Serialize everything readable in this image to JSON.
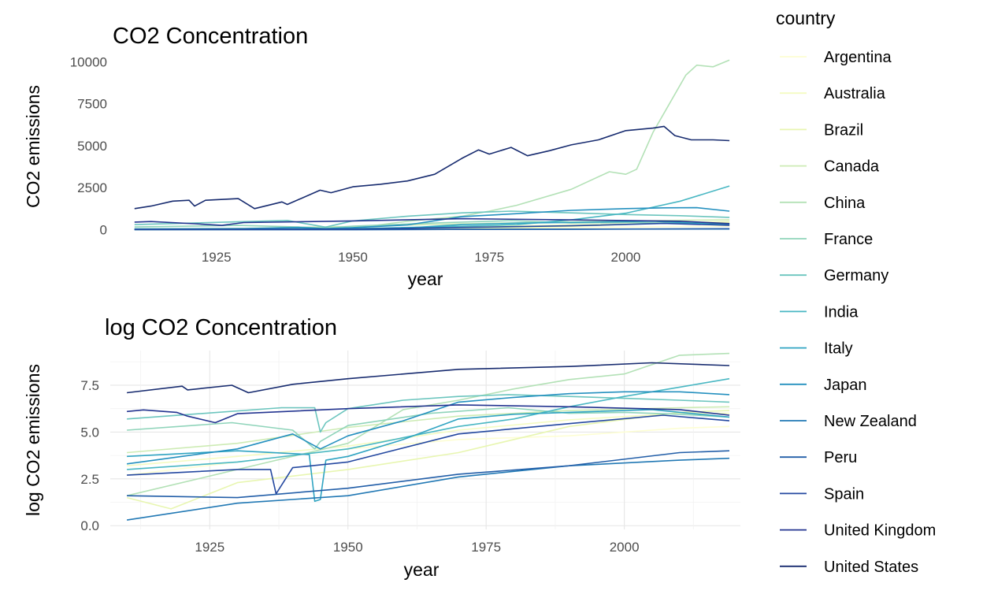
{
  "legend": {
    "title": "country",
    "items": [
      {
        "name": "Argentina",
        "color": "#fdfed3"
      },
      {
        "name": "Australia",
        "color": "#f4fbc2"
      },
      {
        "name": "Brazil",
        "color": "#e8f6b1"
      },
      {
        "name": "Canada",
        "color": "#cdebb4"
      },
      {
        "name": "China",
        "color": "#b3e1b6"
      },
      {
        "name": "France",
        "color": "#8fd4ba"
      },
      {
        "name": "Germany",
        "color": "#6bc5be"
      },
      {
        "name": "India",
        "color": "#49b7c3"
      },
      {
        "name": "Italy",
        "color": "#30a4c2"
      },
      {
        "name": "Japan",
        "color": "#2490bf"
      },
      {
        "name": "New Zealand",
        "color": "#2178b4"
      },
      {
        "name": "Peru",
        "color": "#225ea8"
      },
      {
        "name": "Spain",
        "color": "#2448a0"
      },
      {
        "name": "United Kingdom",
        "color": "#233490"
      },
      {
        "name": "United States",
        "color": "#172b6f"
      }
    ]
  },
  "chart_data": [
    {
      "type": "line",
      "title": "CO2 Concentration",
      "xlabel": "year",
      "ylabel": "CO2 emissions",
      "xlim": [
        1907,
        2021
      ],
      "ylim": [
        -400,
        10300
      ],
      "xticks": [
        1925,
        1950,
        1975,
        2000
      ],
      "yticks": [
        0,
        2500,
        5000,
        7500,
        10000
      ],
      "ytick_labels": [
        "0",
        "2500",
        "5000",
        "7500",
        "10000"
      ],
      "grid": false,
      "legend_position": "right",
      "series": [
        {
          "name": "Argentina",
          "x": [
            1910,
            1930,
            1950,
            1970,
            1990,
            2010,
            2019
          ],
          "y": [
            15,
            30,
            60,
            100,
            120,
            180,
            200
          ]
        },
        {
          "name": "Australia",
          "x": [
            1910,
            1930,
            1950,
            1970,
            1990,
            2010,
            2019
          ],
          "y": [
            25,
            40,
            70,
            160,
            290,
            400,
            410
          ]
        },
        {
          "name": "Brazil",
          "x": [
            1910,
            1930,
            1950,
            1970,
            1990,
            2010,
            2019
          ],
          "y": [
            5,
            10,
            20,
            50,
            200,
            420,
            470
          ]
        },
        {
          "name": "Canada",
          "x": [
            1910,
            1930,
            1950,
            1970,
            1990,
            2010,
            2019
          ],
          "y": [
            50,
            80,
            190,
            350,
            460,
            560,
            580
          ]
        },
        {
          "name": "China",
          "x": [
            1910,
            1930,
            1950,
            1960,
            1970,
            1975,
            1980,
            1990,
            1997,
            2000,
            2002,
            2005,
            2008,
            2011,
            2013,
            2016,
            2019
          ],
          "y": [
            5,
            20,
            80,
            500,
            800,
            1100,
            1450,
            2400,
            3450,
            3300,
            3600,
            5800,
            7500,
            9200,
            9800,
            9700,
            10100
          ]
        },
        {
          "name": "France",
          "x": [
            1910,
            1929,
            1940,
            1945,
            1950,
            1965,
            1979,
            1990,
            2000,
            2010,
            2019
          ],
          "y": [
            160,
            250,
            160,
            90,
            210,
            400,
            540,
            400,
            420,
            390,
            330
          ]
        },
        {
          "name": "Germany",
          "x": [
            1910,
            1938,
            1945,
            1950,
            1960,
            1970,
            1979,
            1990,
            2000,
            2010,
            2019
          ],
          "y": [
            300,
            550,
            150,
            520,
            800,
            1000,
            1100,
            1000,
            900,
            830,
            730
          ]
        },
        {
          "name": "India",
          "x": [
            1910,
            1930,
            1950,
            1970,
            1980,
            1990,
            2000,
            2010,
            2019
          ],
          "y": [
            20,
            30,
            60,
            200,
            300,
            580,
            980,
            1700,
            2600
          ]
        },
        {
          "name": "Italy",
          "x": [
            1910,
            1930,
            1944,
            1950,
            1960,
            1970,
            1980,
            1990,
            2005,
            2015,
            2019
          ],
          "y": [
            40,
            55,
            12,
            40,
            100,
            300,
            390,
            430,
            500,
            350,
            330
          ]
        },
        {
          "name": "Japan",
          "x": [
            1910,
            1930,
            1940,
            1945,
            1950,
            1960,
            1970,
            1980,
            1990,
            2000,
            2007,
            2013,
            2019
          ],
          "y": [
            25,
            60,
            130,
            60,
            120,
            280,
            780,
            950,
            1150,
            1250,
            1300,
            1310,
            1100
          ]
        },
        {
          "name": "New Zealand",
          "x": [
            1910,
            1950,
            1990,
            2019
          ],
          "y": [
            2,
            5,
            25,
            35
          ]
        },
        {
          "name": "Peru",
          "x": [
            1910,
            1950,
            1990,
            2019
          ],
          "y": [
            1,
            5,
            25,
            55
          ]
        },
        {
          "name": "Spain",
          "x": [
            1910,
            1930,
            1950,
            1970,
            1990,
            2007,
            2019
          ],
          "y": [
            15,
            20,
            30,
            130,
            230,
            370,
            260
          ]
        },
        {
          "name": "United Kingdom",
          "x": [
            1910,
            1913,
            1921,
            1926,
            1930,
            1950,
            1970,
            1990,
            2010,
            2019
          ],
          "y": [
            450,
            480,
            350,
            250,
            420,
            520,
            650,
            580,
            500,
            360
          ]
        },
        {
          "name": "United States",
          "x": [
            1910,
            1913,
            1917,
            1920,
            1921,
            1923,
            1929,
            1932,
            1937,
            1938,
            1944,
            1946,
            1950,
            1955,
            1960,
            1965,
            1970,
            1973,
            1975,
            1979,
            1982,
            1986,
            1990,
            1995,
            2000,
            2005,
            2007,
            2009,
            2012,
            2016,
            2019
          ],
          "y": [
            1250,
            1400,
            1700,
            1750,
            1400,
            1750,
            1850,
            1250,
            1650,
            1500,
            2350,
            2200,
            2550,
            2700,
            2900,
            3300,
            4250,
            4750,
            4500,
            4900,
            4400,
            4700,
            5050,
            5350,
            5900,
            6050,
            6150,
            5600,
            5350,
            5350,
            5300
          ]
        }
      ]
    },
    {
      "type": "line",
      "title": "log CO2 Concentration",
      "xlabel": "year",
      "ylabel": "log CO2 emissions",
      "xlim": [
        1907,
        2021
      ],
      "ylim": [
        -0.2,
        9.35
      ],
      "xticks": [
        1925,
        1950,
        1975,
        2000
      ],
      "yticks": [
        0,
        2.5,
        5,
        7.5
      ],
      "ytick_labels": [
        "0.0",
        "2.5",
        "5.0",
        "7.5"
      ],
      "grid": true,
      "legend_position": "right",
      "series": [
        {
          "name": "Argentina",
          "x": [
            1910,
            1930,
            1950,
            1970,
            1990,
            2010,
            2019
          ],
          "y": [
            2.7,
            3.4,
            4.1,
            4.6,
            4.8,
            5.2,
            5.3
          ]
        },
        {
          "name": "Australia",
          "x": [
            1910,
            1930,
            1950,
            1970,
            1990,
            2010,
            2019
          ],
          "y": [
            3.2,
            3.7,
            4.25,
            5.1,
            5.65,
            6.0,
            6.0
          ]
        },
        {
          "name": "Brazil",
          "x": [
            1910,
            1918,
            1930,
            1950,
            1970,
            1990,
            2010,
            2019
          ],
          "y": [
            1.5,
            0.9,
            2.3,
            3.0,
            3.9,
            5.3,
            6.05,
            6.15
          ]
        },
        {
          "name": "Canada",
          "x": [
            1910,
            1930,
            1950,
            1970,
            1990,
            2010,
            2019
          ],
          "y": [
            3.9,
            4.4,
            5.25,
            5.85,
            6.15,
            6.3,
            6.35
          ]
        },
        {
          "name": "China",
          "x": [
            1910,
            1930,
            1950,
            1960,
            1970,
            1980,
            1990,
            2000,
            2010,
            2019
          ],
          "y": [
            1.6,
            3.0,
            4.4,
            6.2,
            6.7,
            7.3,
            7.8,
            8.1,
            9.1,
            9.2
          ]
        },
        {
          "name": "France",
          "x": [
            1910,
            1929,
            1940,
            1944,
            1945,
            1950,
            1965,
            1979,
            1990,
            2000,
            2010,
            2019
          ],
          "y": [
            5.1,
            5.5,
            5.1,
            4.1,
            4.5,
            5.35,
            6.0,
            6.3,
            6.0,
            6.05,
            5.95,
            5.8
          ]
        },
        {
          "name": "Germany",
          "x": [
            1910,
            1938,
            1944,
            1945,
            1946,
            1950,
            1960,
            1970,
            1979,
            1990,
            2000,
            2010,
            2019
          ],
          "y": [
            5.7,
            6.3,
            6.3,
            5.0,
            5.5,
            6.25,
            6.7,
            6.9,
            7.0,
            6.9,
            6.8,
            6.7,
            6.6
          ]
        },
        {
          "name": "India",
          "x": [
            1910,
            1930,
            1950,
            1970,
            1980,
            1990,
            2000,
            2010,
            2019
          ],
          "y": [
            3.0,
            3.4,
            4.1,
            5.3,
            5.7,
            6.35,
            6.9,
            7.4,
            7.85
          ]
        },
        {
          "name": "Italy",
          "x": [
            1910,
            1930,
            1943,
            1944,
            1945,
            1946,
            1950,
            1960,
            1970,
            1980,
            1990,
            2005,
            2019
          ],
          "y": [
            3.7,
            4.0,
            3.8,
            1.3,
            1.4,
            3.5,
            3.7,
            4.6,
            5.7,
            5.95,
            6.05,
            6.2,
            5.8
          ]
        },
        {
          "name": "Japan",
          "x": [
            1910,
            1930,
            1940,
            1945,
            1950,
            1960,
            1970,
            1980,
            1990,
            2000,
            2010,
            2019
          ],
          "y": [
            3.3,
            4.1,
            4.9,
            4.1,
            4.8,
            5.6,
            6.6,
            6.85,
            7.05,
            7.15,
            7.15,
            7.0
          ]
        },
        {
          "name": "New Zealand",
          "x": [
            1910,
            1930,
            1950,
            1970,
            1990,
            2010,
            2019
          ],
          "y": [
            0.3,
            1.2,
            1.6,
            2.6,
            3.2,
            3.5,
            3.6
          ]
        },
        {
          "name": "Peru",
          "x": [
            1910,
            1930,
            1950,
            1970,
            1990,
            2010,
            2019
          ],
          "y": [
            1.6,
            1.5,
            2.0,
            2.75,
            3.2,
            3.9,
            4.0
          ]
        },
        {
          "name": "Spain",
          "x": [
            1910,
            1930,
            1936,
            1937,
            1940,
            1950,
            1970,
            1990,
            2007,
            2019
          ],
          "y": [
            2.7,
            3.0,
            3.0,
            1.7,
            3.1,
            3.4,
            4.9,
            5.45,
            5.9,
            5.6
          ]
        },
        {
          "name": "United Kingdom",
          "x": [
            1910,
            1913,
            1919,
            1921,
            1926,
            1930,
            1950,
            1970,
            1990,
            2010,
            2019
          ],
          "y": [
            6.1,
            6.18,
            6.05,
            5.85,
            5.5,
            5.98,
            6.25,
            6.45,
            6.35,
            6.2,
            5.9
          ]
        },
        {
          "name": "United States",
          "x": [
            1910,
            1920,
            1921,
            1929,
            1932,
            1940,
            1950,
            1970,
            1990,
            2005,
            2019
          ],
          "y": [
            7.1,
            7.45,
            7.25,
            7.5,
            7.1,
            7.55,
            7.85,
            8.35,
            8.5,
            8.7,
            8.55
          ]
        }
      ]
    }
  ]
}
